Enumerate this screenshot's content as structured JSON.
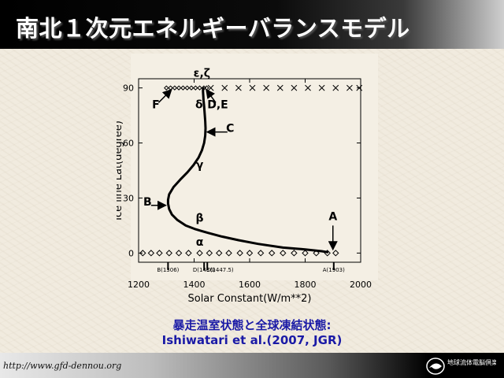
{
  "slide": {
    "title": "南北１次元エネルギーバランスモデル",
    "caption_line1": "暴走温室状態と全球凍結状態:",
    "caption_line2": "Ishiwatari et al.(2007, JGR)",
    "footer_url": "http://www.gfd-dennou.org",
    "logo_text": "地球流体電脳倶楽部"
  },
  "colors": {
    "title_bg": "#000000",
    "caption": "#1a1aa6",
    "page_bg": "#f1ebdf"
  },
  "chart_data": {
    "type": "scatter",
    "xlabel": "Solar Constant(W/m**2)",
    "ylabel": "Ice line Lat(degree)",
    "xlim": [
      1200,
      2000
    ],
    "ylim": [
      -5,
      95
    ],
    "xticks": [
      1200,
      1400,
      1600,
      1800,
      2000
    ],
    "yticks": [
      0,
      30,
      60,
      90
    ],
    "xtick_labels": [
      "1200",
      "1400",
      "1600",
      "1800",
      "2000"
    ],
    "ytick_labels": [
      "0",
      "30",
      "60",
      "90"
    ],
    "series": [
      {
        "marker": "line",
        "points": [
          [
            1432,
            90
          ],
          [
            1432,
            88
          ],
          [
            1433,
            86
          ],
          [
            1434,
            83
          ],
          [
            1436,
            80
          ],
          [
            1438,
            76
          ],
          [
            1440,
            72
          ],
          [
            1441,
            68
          ],
          [
            1440,
            64
          ],
          [
            1436,
            60
          ],
          [
            1428,
            56
          ],
          [
            1416,
            52
          ],
          [
            1398,
            48
          ],
          [
            1376,
            44
          ],
          [
            1350,
            40
          ],
          [
            1326,
            36
          ],
          [
            1310,
            32
          ],
          [
            1306,
            29
          ],
          [
            1306,
            27
          ],
          [
            1310,
            24
          ],
          [
            1320,
            21
          ],
          [
            1340,
            18
          ],
          [
            1370,
            15
          ],
          [
            1405,
            13
          ],
          [
            1450,
            11
          ],
          [
            1500,
            9
          ],
          [
            1560,
            7
          ],
          [
            1630,
            5
          ],
          [
            1720,
            3
          ],
          [
            1800,
            2
          ],
          [
            1860,
            1
          ],
          [
            1880,
            0.5
          ]
        ]
      },
      {
        "marker": "x",
        "points": [
          [
            1460,
            90
          ],
          [
            1510,
            90
          ],
          [
            1560,
            90
          ],
          [
            1610,
            90
          ],
          [
            1660,
            90
          ],
          [
            1710,
            90
          ],
          [
            1760,
            90
          ],
          [
            1810,
            90
          ],
          [
            1860,
            90
          ],
          [
            1910,
            90
          ],
          [
            1960,
            90
          ],
          [
            1995,
            90
          ]
        ]
      },
      {
        "marker": "diamond",
        "points": [
          [
            1215,
            0
          ],
          [
            1245,
            0
          ],
          [
            1275,
            0
          ],
          [
            1310,
            0
          ],
          [
            1345,
            0
          ],
          [
            1380,
            0
          ],
          [
            1420,
            0
          ],
          [
            1455,
            0
          ],
          [
            1490,
            0
          ],
          [
            1525,
            0
          ],
          [
            1565,
            0
          ],
          [
            1600,
            0
          ],
          [
            1640,
            0
          ],
          [
            1680,
            0
          ],
          [
            1720,
            0
          ],
          [
            1760,
            0
          ],
          [
            1800,
            0
          ],
          [
            1840,
            0
          ],
          [
            1880,
            0
          ],
          [
            1910,
            0
          ]
        ]
      },
      {
        "marker": "diamond-small",
        "points": [
          [
            1300,
            90
          ],
          [
            1315,
            90
          ],
          [
            1330,
            90
          ],
          [
            1345,
            90
          ],
          [
            1360,
            90
          ],
          [
            1375,
            90
          ],
          [
            1390,
            90
          ],
          [
            1405,
            90
          ],
          [
            1420,
            90
          ],
          [
            1435,
            90
          ],
          [
            1445,
            90
          ]
        ]
      }
    ],
    "annotations": [
      {
        "text": "ε,ζ",
        "x": 1428,
        "y": 96
      },
      {
        "text": "δ",
        "x": 1418,
        "y": 79
      },
      {
        "text": "γ",
        "x": 1420,
        "y": 46
      },
      {
        "text": "β",
        "x": 1420,
        "y": 17
      },
      {
        "text": "α",
        "x": 1420,
        "y": 4
      },
      {
        "text": "F",
        "x": 1262,
        "y": 79
      },
      {
        "text": "D,E",
        "x": 1485,
        "y": 79
      },
      {
        "text": "C",
        "x": 1530,
        "y": 66
      },
      {
        "text": "B",
        "x": 1232,
        "y": 26
      },
      {
        "text": "A",
        "x": 1900,
        "y": 18
      }
    ],
    "arrows": [
      {
        "from": [
          1272,
          82
        ],
        "to": [
          1318,
          89
        ]
      },
      {
        "from": [
          1478,
          82
        ],
        "to": [
          1444,
          89
        ]
      },
      {
        "from": [
          1520,
          66
        ],
        "to": [
          1447,
          66
        ]
      },
      {
        "from": [
          1245,
          26
        ],
        "to": [
          1298,
          26
        ]
      },
      {
        "from": [
          1900,
          15
        ],
        "to": [
          1900,
          2
        ]
      }
    ],
    "bottom_labels": [
      {
        "text": "B(1306)",
        "x": 1306
      },
      {
        "text": "D(1436)",
        "x": 1436
      },
      {
        "text": "C(1447.5)",
        "x": 1447.5
      },
      {
        "text": "A(1903)",
        "x": 1903
      }
    ],
    "bottom_ticks": [
      1306,
      1436,
      1447.5,
      1903
    ]
  }
}
